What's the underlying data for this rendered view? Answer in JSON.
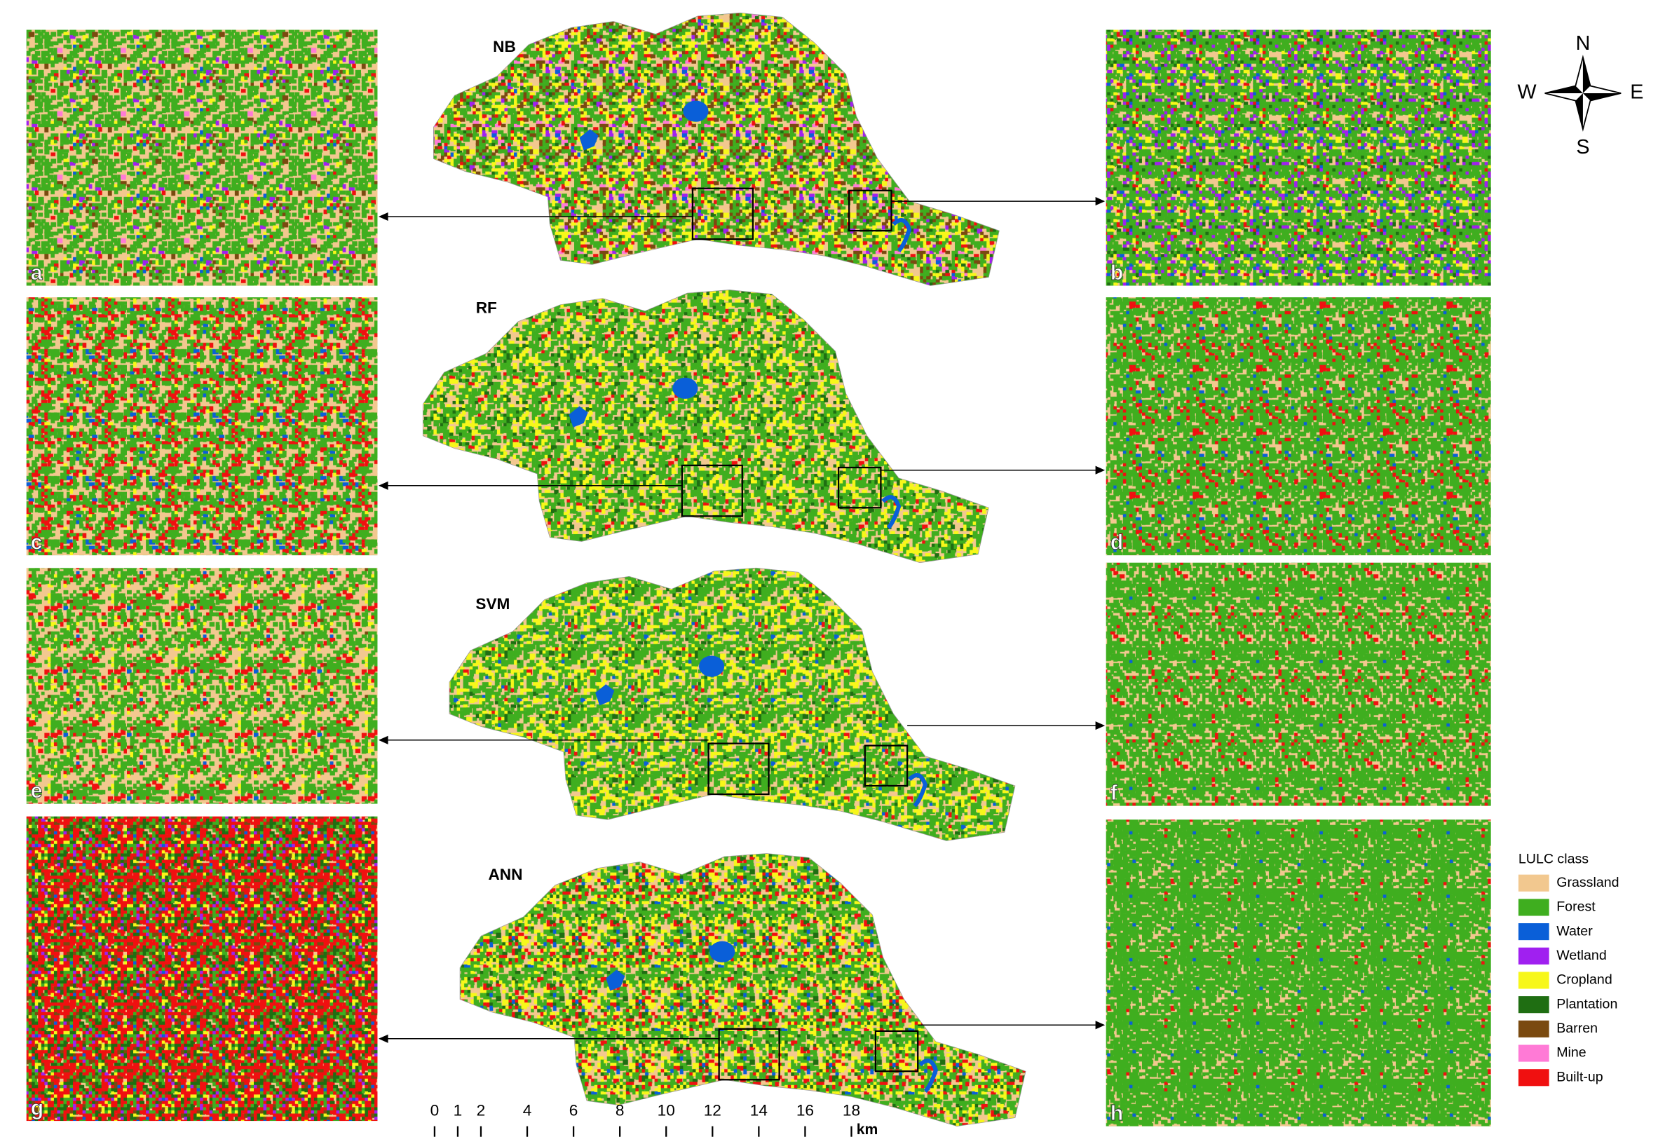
{
  "model_labels": [
    "NB",
    "RF",
    "SVM",
    "ANN"
  ],
  "panel_labels": [
    "a",
    "b",
    "c",
    "d",
    "e",
    "f",
    "g",
    "h"
  ],
  "compass": {
    "north": "N",
    "east": "E",
    "south": "S",
    "west": "W"
  },
  "legend": {
    "title": "LULC class",
    "classes": [
      {
        "name": "Grassland",
        "color": "#f2c88f"
      },
      {
        "name": "Forest",
        "color": "#3fae1f"
      },
      {
        "name": "Water",
        "color": "#0a5fd8"
      },
      {
        "name": "Wetland",
        "color": "#a020f0"
      },
      {
        "name": "Cropland",
        "color": "#f7f71a"
      },
      {
        "name": "Plantation",
        "color": "#1f6e12"
      },
      {
        "name": "Barren",
        "color": "#7a4a10"
      },
      {
        "name": "Mine",
        "color": "#ff7ad6"
      },
      {
        "name": "Built-up",
        "color": "#f01010"
      }
    ]
  },
  "scale_bar": {
    "ticks": [
      0,
      1,
      2,
      4,
      6,
      8,
      10,
      12,
      14,
      16,
      18
    ],
    "unit": "km"
  }
}
